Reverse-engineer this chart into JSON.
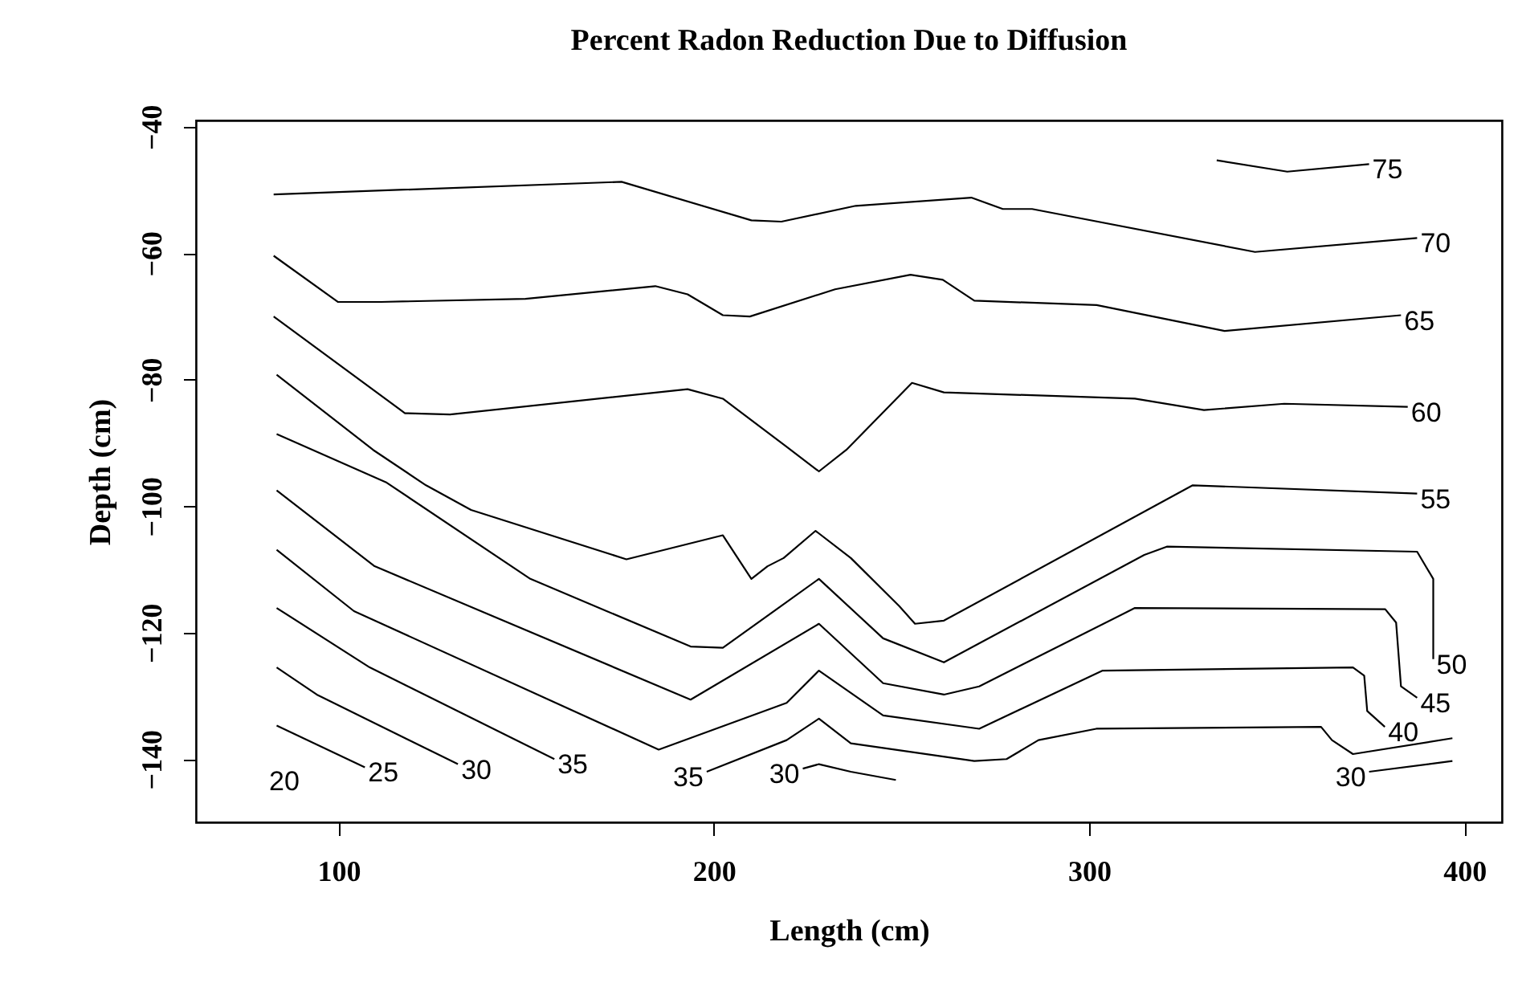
{
  "chart_data": {
    "type": "line",
    "title": "Percent Radon Reduction Due to Diffusion",
    "xlabel": "Length (cm)",
    "ylabel": "Depth (cm)",
    "xlim": [
      62,
      410
    ],
    "ylim": [
      -150,
      -39
    ],
    "xticks": [
      100,
      200,
      300,
      400
    ],
    "yticks": [
      -40,
      -60,
      -80,
      -100,
      -120,
      -140
    ],
    "series": [
      {
        "color": "#000000",
        "x": [
          334,
          352.8,
          374.6
        ],
        "values": [
          -45.3,
          -47.1,
          -45.9
        ]
      },
      {
        "color": "#000000",
        "x": [
          82.7,
          175.4,
          210,
          218,
          237.8,
          268.6,
          277,
          284.8,
          344.2,
          387.4
        ],
        "values": [
          -50.7,
          -48.7,
          -54.8,
          -55,
          -52.5,
          -51.2,
          -53,
          -53,
          -59.8,
          -57.6
        ]
      },
      {
        "color": "#000000",
        "x": [
          82.7,
          99.8,
          111.3,
          149.8,
          184.4,
          193,
          202.4,
          209.6,
          232.3,
          252.4,
          261,
          269.4,
          302,
          336.1,
          383.1
        ],
        "values": [
          -60.4,
          -67.7,
          -67.7,
          -67.2,
          -65.2,
          -66.5,
          -69.8,
          -70,
          -65.7,
          -63.4,
          -64.2,
          -67.5,
          -68.2,
          -72.3,
          -69.8
        ]
      },
      {
        "color": "#000000",
        "x": [
          82.7,
          117.7,
          129.7,
          193,
          202.4,
          219.4,
          228,
          235.3,
          252.8,
          261.3,
          312.2,
          330.6,
          352,
          384.9
        ],
        "values": [
          -70,
          -85.3,
          -85.5,
          -81.5,
          -83,
          -90.6,
          -94.5,
          -91.1,
          -80.5,
          -82,
          -83,
          -84.8,
          -83.8,
          -84.3
        ]
      },
      {
        "color": "#000000",
        "x": [
          83.5,
          109.2,
          123.3,
          135.3,
          176.7,
          202.4,
          210,
          214.3,
          218.6,
          227.1,
          236.5,
          249.4,
          253.6,
          261.3,
          327.6,
          387.4
        ],
        "values": [
          -79.2,
          -91.1,
          -96.7,
          -100.6,
          -108.4,
          -104.6,
          -111.5,
          -109.5,
          -108.2,
          -103.9,
          -108.2,
          -115.8,
          -118.6,
          -118.1,
          -96.7,
          -98
        ]
      },
      {
        "color": "#000000",
        "x": [
          83.5,
          112.6,
          151.1,
          193.8,
          202.4,
          228,
          245.1,
          261.3,
          314.7,
          320.7,
          387.4,
          391.7,
          391.7
        ],
        "values": [
          -88.6,
          -96.2,
          -111.5,
          -122.2,
          -122.4,
          -111.5,
          -120.9,
          -124.7,
          -107.7,
          -106.4,
          -107.2,
          -111.5,
          -124.2
        ]
      },
      {
        "color": "#000000",
        "x": [
          83.5,
          109.6,
          193.8,
          228,
          245.1,
          261.3,
          270.7,
          312.2,
          378.9,
          381.8,
          383.1,
          387.4
        ],
        "values": [
          -97.5,
          -109.5,
          -130.6,
          -118.6,
          -128,
          -129.8,
          -128.5,
          -116.1,
          -116.3,
          -118.4,
          -128.5,
          -130.3
        ]
      },
      {
        "color": "#000000",
        "x": [
          83.5,
          104.1,
          185.3,
          219.4,
          228,
          245.1,
          270.7,
          303.6,
          370.3,
          373.3,
          374.1,
          378.8
        ],
        "values": [
          -106.9,
          -116.6,
          -138.5,
          -131.1,
          -126,
          -133.1,
          -135.2,
          -126,
          -125.5,
          -126.8,
          -132.4,
          -134.9
        ]
      },
      {
        "color": "#000000",
        "x": [
          83.5,
          108.3,
          157.5,
          null,
          198.1,
          219.4,
          228,
          236.5,
          269.4,
          278,
          286.5,
          301.9,
          361.8,
          364.7,
          370.3,
          396.8
        ],
        "values": [
          -116.1,
          -125.5,
          -140,
          null,
          -142,
          -137,
          -133.6,
          -137.5,
          -140.3,
          -140,
          -137,
          -135.2,
          -134.9,
          -137,
          -139.2,
          -136.7
        ]
      },
      {
        "color": "#000000",
        "x": [
          83.5,
          94.2,
          131.8,
          null,
          223.7,
          228,
          236.5,
          248.5,
          null,
          374.6,
          396.8
        ],
        "values": [
          -125.5,
          -129.8,
          -140.8,
          null,
          -141.5,
          -140.8,
          -142,
          -143.3,
          null,
          -142,
          -140.3
        ]
      },
      {
        "color": "#000000",
        "x": [
          83.5,
          107
        ],
        "values": [
          -134.7,
          -141.3
        ]
      }
    ],
    "annotations": [
      {
        "text": "75",
        "x": 374.6,
        "y": -45.9
      },
      {
        "text": "70",
        "x": 387.4,
        "y": -57.6
      },
      {
        "text": "65",
        "x": 383.1,
        "y": -69.8
      },
      {
        "text": "60",
        "x": 384.9,
        "y": -84.3
      },
      {
        "text": "55",
        "x": 387.4,
        "y": -98
      },
      {
        "text": "50",
        "x": 391.7,
        "y": -124.2
      },
      {
        "text": "45",
        "x": 387.4,
        "y": -130.3
      },
      {
        "text": "40",
        "x": 378.8,
        "y": -134.9
      },
      {
        "text": "30",
        "x": 374.6,
        "y": -142
      },
      "20",
      {
        "text": "25",
        "x": 107,
        "y": -141.3
      },
      {
        "text": "30",
        "x": 131.8,
        "y": -140.8
      },
      {
        "text": "35",
        "x": 157.5,
        "y": -140
      },
      {
        "text": "35",
        "x": 198.1,
        "y": -142
      },
      {
        "text": "30",
        "x": 223.7,
        "y": -141.5
      }
    ]
  }
}
